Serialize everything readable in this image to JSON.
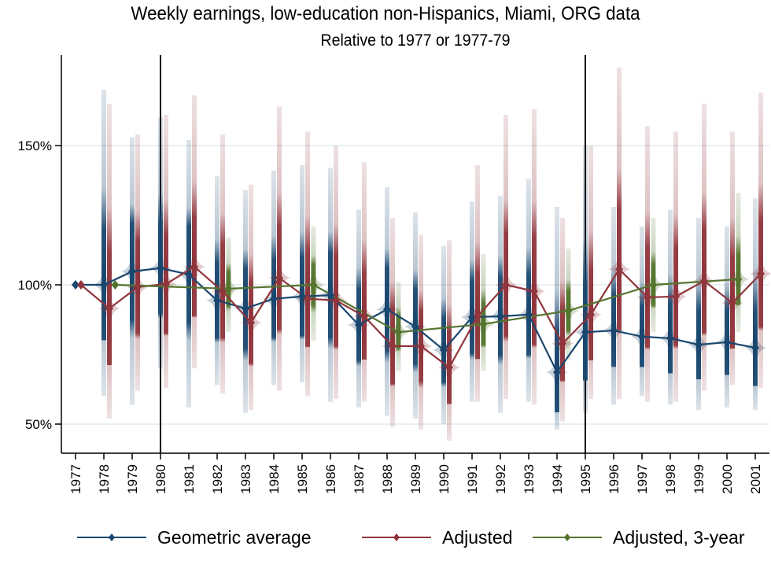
{
  "chart_data": {
    "type": "line",
    "title": "Weekly earnings, low-education non-Hispanics, Miami, ORG data",
    "subtitle": "Relative to 1977 or 1977-79",
    "xlabel": "",
    "ylabel": "",
    "ylim": [
      40,
      183
    ],
    "yticks": [
      50,
      100,
      150
    ],
    "ytick_labels": [
      "50%",
      "100%",
      "150%"
    ],
    "xlim": [
      1976.5,
      2001.5
    ],
    "xticks": [
      1977,
      1978,
      1979,
      1980,
      1981,
      1982,
      1983,
      1984,
      1985,
      1986,
      1987,
      1988,
      1989,
      1990,
      1991,
      1992,
      1993,
      1994,
      1995,
      1996,
      1997,
      1998,
      1999,
      2000,
      2001
    ],
    "grid": true,
    "reference_lines_x": [
      1980,
      1995
    ],
    "legend_position": "bottom",
    "series": [
      {
        "name": "Geometric average",
        "color": "#1a476f",
        "x": [
          1977,
          1978,
          1979,
          1980,
          1981,
          1982,
          1983,
          1984,
          1985,
          1986,
          1987,
          1988,
          1989,
          1990,
          1991,
          1992,
          1993,
          1994,
          1995,
          1996,
          1997,
          1998,
          1999,
          2000,
          2001
        ],
        "values": [
          100,
          100,
          104.8,
          106,
          103.7,
          94.4,
          91.5,
          95,
          95.8,
          96.3,
          85.6,
          91.2,
          85,
          76.6,
          88.4,
          88.7,
          89.3,
          68.6,
          83,
          83.6,
          81.4,
          80.8,
          78.5,
          79.4,
          77.4
        ],
        "ci_low": [
          null,
          60,
          57,
          70,
          56,
          64,
          54,
          64,
          65,
          58,
          56,
          53,
          52,
          50,
          58,
          54,
          58,
          48,
          54,
          57,
          60,
          57,
          55,
          56,
          55
        ],
        "ci_high": [
          null,
          170,
          153,
          160,
          152,
          139,
          134,
          141,
          143,
          142,
          127,
          135,
          126,
          114,
          130,
          132,
          138,
          128,
          150,
          128,
          121,
          127,
          124,
          121,
          131
        ]
      },
      {
        "name": "Adjusted",
        "color": "#90353b",
        "x": [
          1977,
          1978,
          1979,
          1980,
          1981,
          1982,
          1983,
          1984,
          1985,
          1986,
          1987,
          1988,
          1989,
          1990,
          1991,
          1992,
          1993,
          1994,
          1995,
          1996,
          1997,
          1998,
          1999,
          2000,
          2001
        ],
        "values": [
          100,
          91.5,
          99.2,
          100.3,
          106.5,
          97.7,
          86.4,
          102.5,
          95,
          94.4,
          88.7,
          78,
          78,
          70.3,
          88.7,
          100,
          97.7,
          78.9,
          89.3,
          105.6,
          95.5,
          95.8,
          101.4,
          93.5,
          104
        ],
        "ci_low": [
          null,
          52,
          62,
          63,
          70,
          61,
          55,
          62,
          60,
          59,
          58,
          49,
          48,
          44,
          58,
          59,
          57,
          51,
          59,
          59,
          58,
          58,
          62,
          64,
          63
        ],
        "ci_high": [
          null,
          165,
          154,
          161,
          168,
          154,
          136,
          164,
          155,
          150,
          144,
          124,
          118,
          116,
          143,
          161,
          163,
          124,
          150,
          178,
          157,
          155,
          165,
          155,
          169
        ]
      },
      {
        "name": "Adjusted, 3-year",
        "color": "#55752f",
        "x": [
          1978.4,
          1982.4,
          1985.4,
          1988.4,
          1991.4,
          1994.4,
          1997.4,
          2000.4
        ],
        "values": [
          100,
          98.6,
          100,
          83,
          85.9,
          90.7,
          100,
          102
        ],
        "ci_low": [
          null,
          83,
          80,
          69,
          69,
          73,
          83,
          83
        ],
        "ci_high": [
          null,
          117,
          121,
          101,
          111,
          113,
          124,
          133
        ]
      }
    ]
  }
}
